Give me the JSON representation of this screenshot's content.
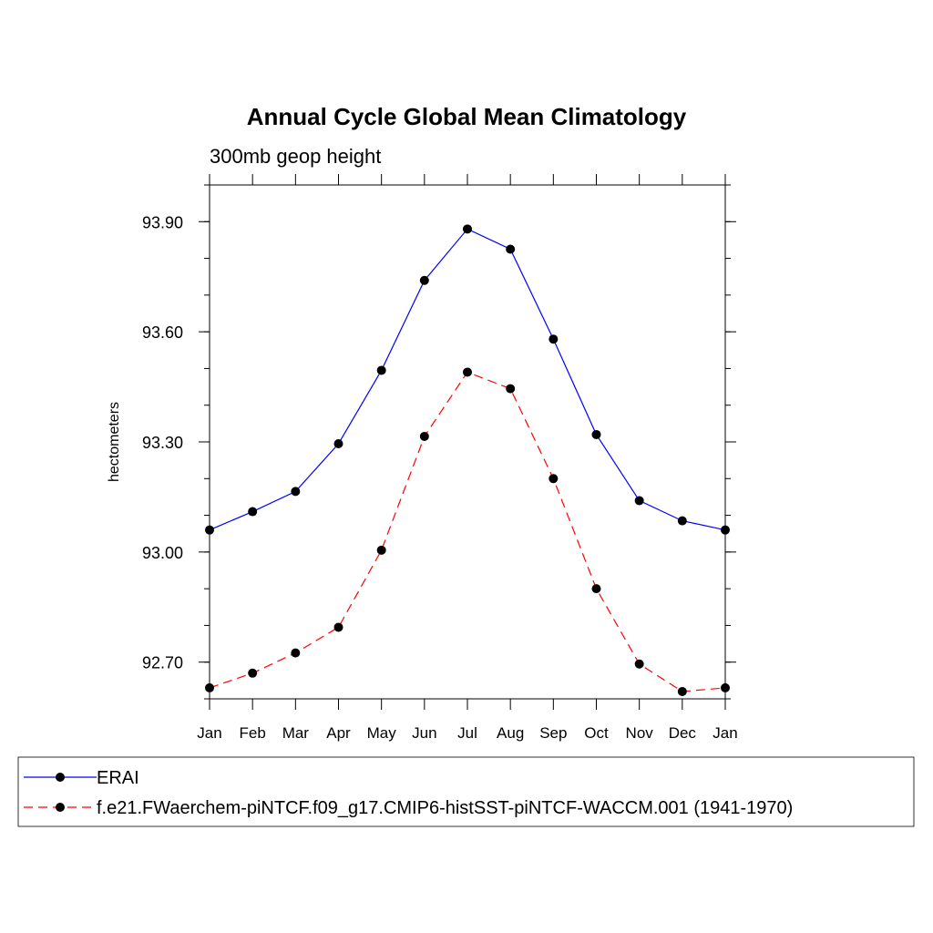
{
  "chart_data": {
    "type": "line",
    "title": "Annual Cycle Global Mean Climatology",
    "subtitle": "300mb geop height",
    "xlabel": "",
    "ylabel": "hectometers",
    "categories": [
      "Jan",
      "Feb",
      "Mar",
      "Apr",
      "May",
      "Jun",
      "Jul",
      "Aug",
      "Sep",
      "Oct",
      "Nov",
      "Dec",
      "Jan"
    ],
    "ylim": [
      92.6,
      94.0
    ],
    "yticks": [
      92.7,
      93.0,
      93.3,
      93.6,
      93.9
    ],
    "ytick_labels": [
      "92.70",
      "93.00",
      "93.30",
      "93.60",
      "93.90"
    ],
    "grid": false,
    "legend_position": "bottom",
    "series": [
      {
        "name": "ERAI",
        "color": "#0000ff",
        "dash": "solid",
        "marker": "circle",
        "values": [
          93.06,
          93.11,
          93.165,
          93.295,
          93.495,
          93.74,
          93.88,
          93.825,
          93.58,
          93.32,
          93.14,
          93.085,
          93.06
        ]
      },
      {
        "name": "f.e21.FWaerchem-piNTCF.f09_g17.CMIP6-histSST-piNTCF-WACCM.001 (1941-1970)",
        "color": "#ff0000",
        "dash": "dashed",
        "marker": "circle",
        "values": [
          92.63,
          92.67,
          92.725,
          92.795,
          93.005,
          93.315,
          93.49,
          93.445,
          93.2,
          92.9,
          92.695,
          92.62,
          92.63
        ]
      }
    ]
  }
}
